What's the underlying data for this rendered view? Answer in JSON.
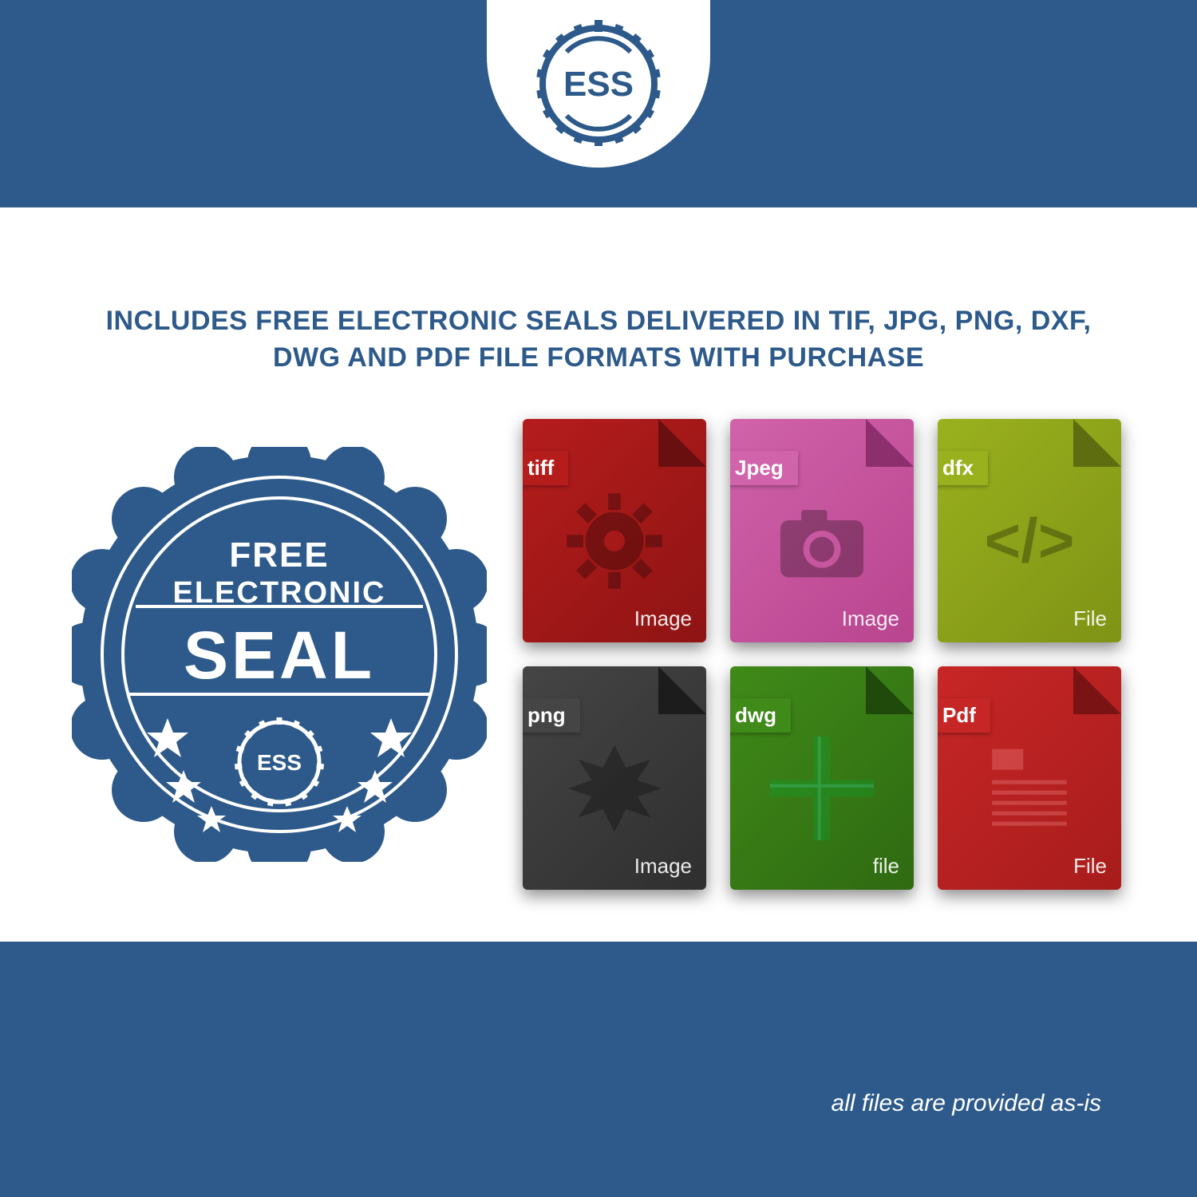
{
  "colors": {
    "brand_blue": "#2d5a8a",
    "white": "#ffffff"
  },
  "logo": {
    "text": "ESS"
  },
  "headline": "INCLUDES FREE ELECTRONIC SEALS DELIVERED IN TIF, JPG, PNG, DXF, DWG AND PDF FILE FORMATS WITH PURCHASE",
  "seal": {
    "line1": "FREE",
    "line2": "ELECTRONIC",
    "line3": "SEAL",
    "badge_text": "ESS",
    "fill": "#2d5a8a",
    "stroke": "#ffffff"
  },
  "file_icons": [
    {
      "label": "tiff",
      "footer": "Image",
      "bg": "#8f1414",
      "bg2": "#b51c1c",
      "tab_bg": "#b51c1c",
      "corner": "#6a0f0f",
      "glyph": "gear"
    },
    {
      "label": "Jpeg",
      "footer": "Image",
      "bg": "#b9448f",
      "bg2": "#d063aa",
      "tab_bg": "#d063aa",
      "corner": "#8d2f6c",
      "glyph": "camera"
    },
    {
      "label": "dfx",
      "footer": "File",
      "bg": "#7f9315",
      "bg2": "#9ab11e",
      "tab_bg": "#9ab11e",
      "corner": "#5e6d0f",
      "glyph": "code"
    },
    {
      "label": "png",
      "footer": "Image",
      "bg": "#2f2f2f",
      "bg2": "#454545",
      "tab_bg": "#454545",
      "corner": "#1c1c1c",
      "glyph": "burst"
    },
    {
      "label": "dwg",
      "footer": "file",
      "bg": "#2f6a12",
      "bg2": "#3f8a18",
      "tab_bg": "#3f8a18",
      "corner": "#204a0c",
      "glyph": "cross"
    },
    {
      "label": "Pdf",
      "footer": "File",
      "bg": "#a81c1c",
      "bg2": "#c72626",
      "tab_bg": "#c72626",
      "corner": "#7a1313",
      "glyph": "doc"
    }
  ],
  "disclaimer": "all files are provided as-is"
}
